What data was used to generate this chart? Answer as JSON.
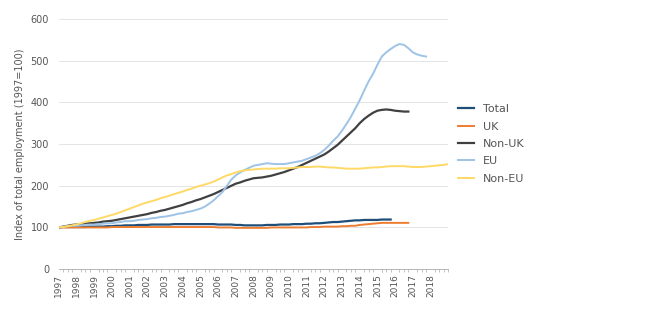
{
  "ylabel": "Index of total employment (1997=100)",
  "xlim": [
    1997.0,
    2018.75
  ],
  "ylim": [
    0,
    600
  ],
  "yticks": [
    0,
    100,
    200,
    300,
    400,
    500,
    600
  ],
  "year_ticks": [
    1997,
    1998,
    1999,
    2000,
    2001,
    2002,
    2003,
    2004,
    2005,
    2006,
    2007,
    2008,
    2009,
    2010,
    2011,
    2012,
    2013,
    2014,
    2015,
    2016,
    2017,
    2018
  ],
  "series": {
    "Total": {
      "color": "#1f4e79",
      "linewidth": 1.6,
      "values": [
        100,
        101,
        101,
        101,
        101,
        101,
        101,
        102,
        102,
        102,
        102,
        103,
        103,
        104,
        104,
        105,
        105,
        105,
        106,
        106,
        106,
        107,
        107,
        107,
        107,
        107,
        108,
        108,
        108,
        108,
        108,
        108,
        108,
        108,
        108,
        108,
        107,
        107,
        107,
        107,
        106,
        106,
        105,
        105,
        105,
        105,
        105,
        106,
        106,
        106,
        107,
        107,
        107,
        108,
        108,
        108,
        109,
        109,
        110,
        110,
        111,
        112,
        113,
        113,
        114,
        115,
        116,
        117,
        117,
        118,
        118,
        118,
        118,
        119,
        119,
        119
      ]
    },
    "UK": {
      "color": "#ed7d31",
      "linewidth": 1.4,
      "values": [
        100,
        100,
        100,
        100,
        100,
        100,
        100,
        100,
        100,
        100,
        100,
        100,
        101,
        101,
        101,
        101,
        101,
        101,
        101,
        101,
        101,
        101,
        101,
        101,
        101,
        101,
        101,
        101,
        101,
        101,
        101,
        101,
        101,
        101,
        101,
        101,
        100,
        100,
        100,
        100,
        99,
        99,
        99,
        99,
        99,
        99,
        99,
        99,
        100,
        100,
        100,
        100,
        100,
        100,
        100,
        100,
        100,
        101,
        101,
        101,
        102,
        102,
        102,
        102,
        103,
        103,
        104,
        104,
        106,
        107,
        108,
        109,
        110,
        111,
        111,
        111,
        111,
        111,
        111,
        111
      ]
    },
    "Non-UK": {
      "color": "#404040",
      "linewidth": 1.6,
      "values": [
        100,
        102,
        104,
        106,
        107,
        108,
        109,
        110,
        111,
        112,
        114,
        115,
        116,
        118,
        120,
        122,
        124,
        126,
        128,
        130,
        132,
        135,
        137,
        140,
        142,
        145,
        148,
        151,
        154,
        158,
        161,
        165,
        168,
        172,
        176,
        180,
        185,
        190,
        195,
        200,
        205,
        208,
        212,
        215,
        218,
        219,
        220,
        222,
        224,
        227,
        230,
        233,
        237,
        241,
        245,
        250,
        255,
        260,
        265,
        270,
        275,
        282,
        290,
        298,
        308,
        318,
        328,
        338,
        350,
        360,
        368,
        375,
        380,
        382,
        383,
        382,
        380,
        379,
        378,
        378
      ]
    },
    "EU": {
      "color": "#9dc3e6",
      "linewidth": 1.4,
      "values": [
        100,
        102,
        103,
        104,
        104,
        105,
        106,
        107,
        107,
        108,
        109,
        110,
        110,
        112,
        113,
        115,
        115,
        116,
        118,
        119,
        120,
        122,
        123,
        125,
        126,
        128,
        130,
        133,
        134,
        137,
        139,
        142,
        145,
        150,
        157,
        165,
        175,
        185,
        200,
        215,
        225,
        232,
        238,
        243,
        248,
        250,
        252,
        254,
        253,
        252,
        252,
        252,
        254,
        256,
        258,
        260,
        264,
        268,
        272,
        278,
        286,
        296,
        308,
        318,
        332,
        348,
        365,
        385,
        405,
        428,
        450,
        468,
        490,
        510,
        520,
        528,
        535,
        540,
        538,
        530,
        520,
        515,
        512,
        510
      ]
    },
    "Non-EU": {
      "color": "#ffd966",
      "linewidth": 1.4,
      "values": [
        100,
        101,
        103,
        105,
        107,
        110,
        113,
        116,
        118,
        121,
        124,
        127,
        130,
        133,
        137,
        141,
        145,
        149,
        153,
        157,
        160,
        163,
        166,
        170,
        173,
        176,
        180,
        183,
        186,
        190,
        193,
        197,
        200,
        203,
        206,
        210,
        215,
        220,
        225,
        228,
        232,
        235,
        237,
        238,
        239,
        240,
        241,
        241,
        241,
        241,
        242,
        242,
        242,
        243,
        244,
        245,
        245,
        245,
        246,
        246,
        245,
        244,
        244,
        243,
        242,
        241,
        241,
        241,
        241,
        242,
        243,
        244,
        244,
        245,
        246,
        247,
        247,
        247,
        247,
        246,
        245,
        245,
        245,
        246,
        247,
        248,
        249,
        250,
        252,
        253,
        254,
        255
      ]
    }
  },
  "legend_order": [
    "Total",
    "UK",
    "Non-UK",
    "EU",
    "Non-EU"
  ],
  "background_color": "#ffffff",
  "grid_color": "#d9d9d9"
}
